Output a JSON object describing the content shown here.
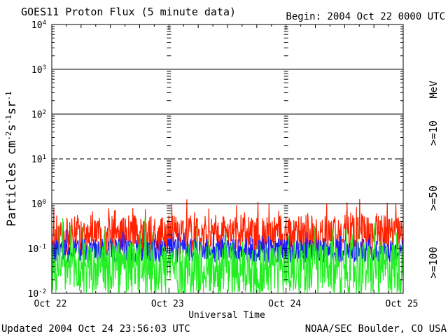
{
  "chart_data": {
    "type": "line",
    "title": "GOES11 Proton Flux (5 minute data)",
    "begin": "Begin: 2004 Oct 22 0000 UTC",
    "ylabel_main": "Particles cm",
    "ylabel_sup1": "-2",
    "ylabel_mid1": "s",
    "ylabel_sup2": "-1",
    "ylabel_mid2": "sr",
    "ylabel_sup3": "-1",
    "xlabel": "Universal Time",
    "yscale": "log",
    "ylim": [
      0.01,
      10000
    ],
    "y_ticks": [
      {
        "base": "10",
        "exp": "4"
      },
      {
        "base": "10",
        "exp": "3"
      },
      {
        "base": "10",
        "exp": "2"
      },
      {
        "base": "10",
        "exp": "1"
      },
      {
        "base": "10",
        "exp": "0"
      },
      {
        "base": "10",
        "exp": "-1"
      },
      {
        "base": "10",
        "exp": "-2"
      }
    ],
    "x_ticks": [
      "Oct 22",
      "Oct 23",
      "Oct 24",
      "Oct 25"
    ],
    "x_range_days": [
      0,
      3
    ],
    "series": [
      {
        "name": ">=10",
        "color": "#ff2200",
        "base": 0.2,
        "spread": 0.5
      },
      {
        "name": ">=50",
        "color": "#1a1aff",
        "base": 0.09,
        "spread": 0.3
      },
      {
        "name": ">=100",
        "color": "#22ee22",
        "base": 0.035,
        "spread": 0.7
      }
    ],
    "legend_units": "MeV",
    "updated": "Updated 2004 Oct 24 23:56:03 UTC",
    "credit": "NOAA/SEC Boulder, CO USA"
  }
}
